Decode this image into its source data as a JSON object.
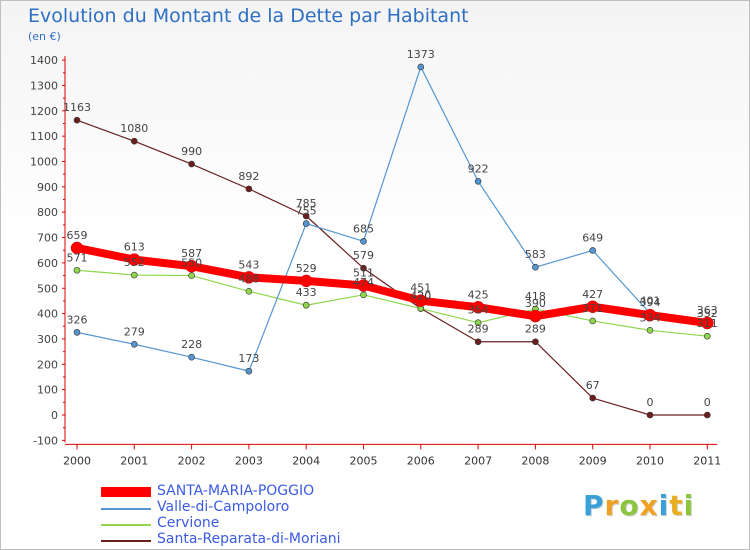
{
  "title": "Evolution du Montant de la Dette par Habitant",
  "subtitle": "(en €)",
  "logo_text": "Proxiti",
  "chart_data": {
    "type": "line",
    "title": "Evolution du Montant de la Dette par Habitant",
    "subtitle": "(en €)",
    "xlabel": "",
    "ylabel": "",
    "x": [
      "2000",
      "2001",
      "2002",
      "2003",
      "2004",
      "2005",
      "2006",
      "2007",
      "2008",
      "2009",
      "2010",
      "2011"
    ],
    "ylim": [
      -100,
      1400
    ],
    "yticks": [
      -100,
      0,
      100,
      200,
      300,
      400,
      500,
      600,
      700,
      800,
      900,
      1000,
      1100,
      1200,
      1300,
      1400
    ],
    "grid": false,
    "legend_position": "bottom-left",
    "series": [
      {
        "name": "Santa-Reparata-di-Moriani",
        "color": "#6b1f1f",
        "values": [
          1163,
          1080,
          990,
          892,
          785,
          579,
          420,
          289,
          289,
          67,
          0,
          0
        ]
      },
      {
        "name": "Cervione",
        "color": "#8fd64d",
        "values": [
          571,
          552,
          550,
          488,
          433,
          474,
          420,
          364,
          418,
          371,
          334,
          311
        ]
      },
      {
        "name": "Valle-di-Campoloro",
        "color": "#5596d2",
        "values": [
          326,
          279,
          228,
          173,
          755,
          685,
          1373,
          922,
          583,
          649,
          401,
          352
        ]
      },
      {
        "name": "SANTA-MARIA-POGGIO",
        "color": "#ff0000",
        "values": [
          659,
          613,
          587,
          543,
          529,
          511,
          451,
          425,
          390,
          427,
          394,
          363
        ]
      }
    ],
    "data_labels": [
      [
        1163,
        1080,
        990,
        892,
        785,
        579,
        420,
        289,
        289,
        67,
        0,
        0
      ],
      [
        571,
        552,
        550,
        488,
        433,
        474,
        420,
        364,
        418,
        371,
        334,
        311
      ],
      [
        326,
        279,
        228,
        173,
        755,
        685,
        1373,
        922,
        583,
        649,
        401,
        352
      ],
      [
        659,
        613,
        587,
        543,
        529,
        511,
        451,
        425,
        390,
        427,
        394,
        363
      ]
    ]
  },
  "legend": [
    {
      "name": "SANTA-MARIA-POGGIO",
      "color": "#ff0000"
    },
    {
      "name": "Valle-di-Campoloro",
      "color": "#5596d2"
    },
    {
      "name": "Cervione",
      "color": "#8fd64d"
    },
    {
      "name": "Santa-Reparata-di-Moriani",
      "color": "#6b1f1f"
    }
  ]
}
